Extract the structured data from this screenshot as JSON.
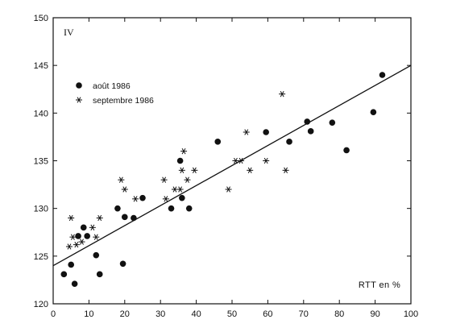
{
  "chart_data": {
    "type": "scatter",
    "panel_label": "IV",
    "xlabel": "RTT en %",
    "ylabel": "",
    "xlim": [
      0,
      100
    ],
    "ylim": [
      120,
      150
    ],
    "x_ticks": [
      0,
      10,
      20,
      30,
      40,
      50,
      60,
      70,
      80,
      90,
      100
    ],
    "y_ticks": [
      120,
      125,
      130,
      135,
      140,
      145,
      150
    ],
    "x_tick_labels": [
      "0",
      "10",
      "20",
      "30",
      "40",
      "50",
      "60",
      "70",
      "80",
      "90",
      "100"
    ],
    "y_tick_labels": [
      "120",
      "125",
      "130",
      "135",
      "140",
      "145",
      "150"
    ],
    "grid": false,
    "legend": {
      "placement": "top-left",
      "entries": [
        "août 1986",
        "septembre 1986"
      ]
    },
    "series": [
      {
        "name": "août 1986",
        "marker": "dot",
        "points": [
          [
            3,
            123.1
          ],
          [
            5,
            124.1
          ],
          [
            6,
            122.1
          ],
          [
            7,
            127.1
          ],
          [
            8.5,
            128
          ],
          [
            9.5,
            127.1
          ],
          [
            12,
            125.1
          ],
          [
            13,
            123.1
          ],
          [
            18,
            130
          ],
          [
            19.5,
            124.2
          ],
          [
            20,
            129.1
          ],
          [
            22.5,
            129
          ],
          [
            25,
            131.1
          ],
          [
            33,
            130
          ],
          [
            35.5,
            135
          ],
          [
            36,
            131.1
          ],
          [
            38,
            130
          ],
          [
            46,
            137
          ],
          [
            59.5,
            138
          ],
          [
            66,
            137
          ],
          [
            71,
            139.1
          ],
          [
            72,
            138.1
          ],
          [
            78,
            139
          ],
          [
            82,
            136.1
          ],
          [
            89.5,
            140.1
          ],
          [
            92,
            144
          ]
        ]
      },
      {
        "name": "septembre 1986",
        "marker": "star",
        "points": [
          [
            4.5,
            126
          ],
          [
            5,
            129
          ],
          [
            5.5,
            127
          ],
          [
            6.5,
            126.2
          ],
          [
            8,
            126.5
          ],
          [
            11,
            128
          ],
          [
            12,
            127
          ],
          [
            13,
            129
          ],
          [
            19,
            133
          ],
          [
            20,
            132
          ],
          [
            23,
            131
          ],
          [
            31,
            133
          ],
          [
            31.5,
            131
          ],
          [
            34,
            132
          ],
          [
            35.5,
            132
          ],
          [
            36,
            134
          ],
          [
            36.5,
            136
          ],
          [
            37.5,
            133
          ],
          [
            39.5,
            134
          ],
          [
            49,
            132
          ],
          [
            51,
            135
          ],
          [
            52.5,
            135
          ],
          [
            54,
            138
          ],
          [
            55,
            134
          ],
          [
            59.5,
            135
          ],
          [
            64,
            142
          ],
          [
            65,
            134
          ]
        ]
      }
    ],
    "fit_line": {
      "x": [
        0,
        100
      ],
      "y": [
        124,
        145
      ]
    }
  }
}
